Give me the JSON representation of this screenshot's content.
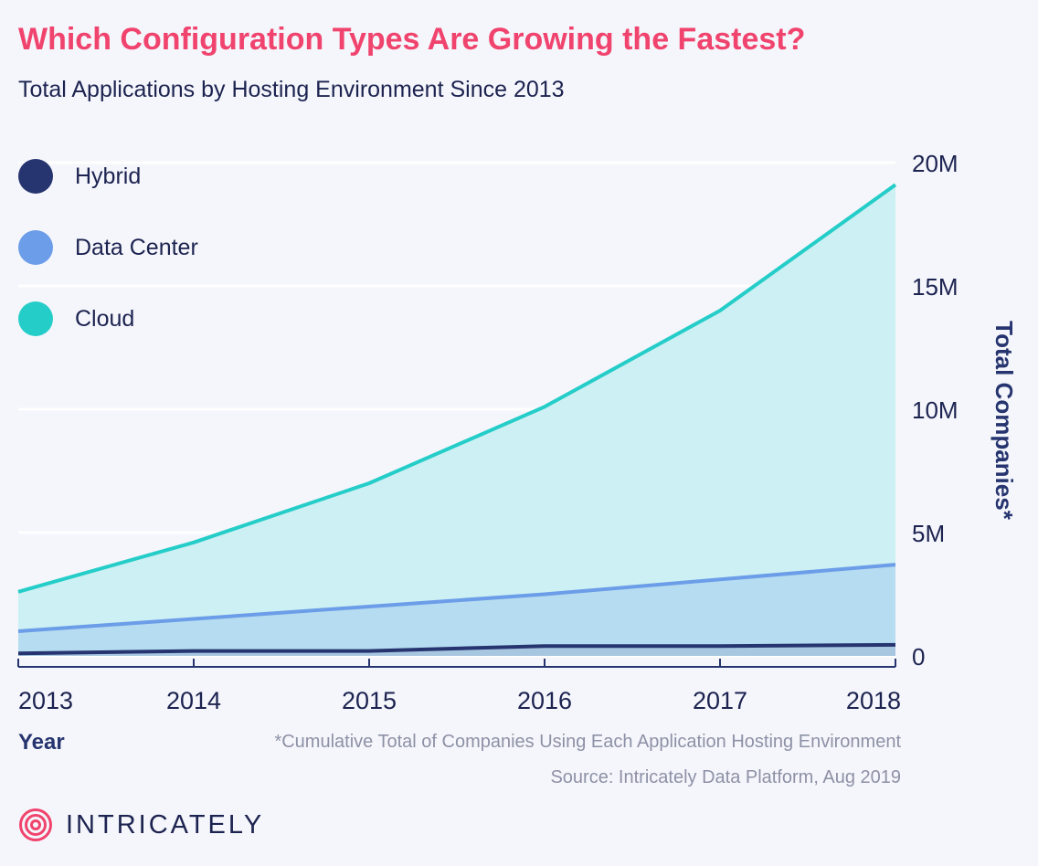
{
  "header": {
    "title": "Which Configuration Types Are Growing the Fastest?",
    "subtitle": "Total Applications by Hosting Environment Since 2013"
  },
  "colors": {
    "title": "#f0446e",
    "text": "#1c2350",
    "muted": "#8d91a6",
    "hybrid": "#26346f",
    "data_center": "#6c9de8",
    "cloud": "#25cdc9",
    "background": "#f5f6fb"
  },
  "legend": {
    "items": [
      {
        "label": "Hybrid",
        "color": "#26346f"
      },
      {
        "label": "Data Center",
        "color": "#6c9de8"
      },
      {
        "label": "Cloud",
        "color": "#25cdc9"
      }
    ]
  },
  "chart_data": {
    "type": "area",
    "x": [
      "2013",
      "2014",
      "2015",
      "2016",
      "2017",
      "2018"
    ],
    "series": [
      {
        "name": "Hybrid",
        "values": [
          0.1,
          0.2,
          0.2,
          0.4,
          0.4,
          0.45
        ]
      },
      {
        "name": "Data Center",
        "values": [
          1.0,
          1.5,
          2.0,
          2.5,
          3.1,
          3.7
        ]
      },
      {
        "name": "Cloud",
        "values": [
          2.6,
          4.6,
          7.0,
          10.1,
          14.0,
          19.1
        ]
      }
    ],
    "y_ticks": [
      0,
      5,
      10,
      15,
      20
    ],
    "y_tick_labels": [
      "0",
      "5M",
      "10M",
      "15M",
      "20M"
    ],
    "ylim": [
      0,
      20
    ],
    "y_axis_position": "right",
    "grid": true,
    "xlabel": "Year",
    "ylabel": "Total Companies*",
    "legend_position": "top-left",
    "unit": "M"
  },
  "footnote": "*Cumulative Total of Companies Using Each Application Hosting Environment",
  "source": "Source: Intricately Data Platform, Aug 2019",
  "brand": {
    "name": "INTRICATELY",
    "logo_icon": "concentric-target-icon"
  }
}
